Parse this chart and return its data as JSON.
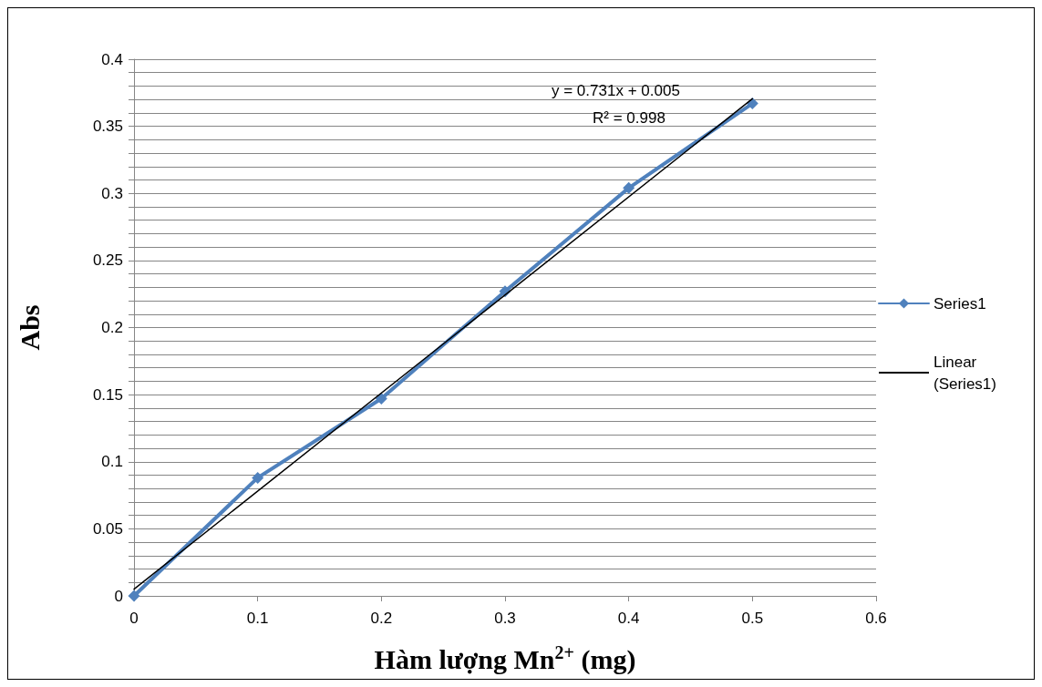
{
  "chart_data": {
    "type": "line",
    "xlabel": "Hàm lượng Mn$^{2+}$ (mg)",
    "ylabel": "Abs",
    "x": [
      0,
      0.1,
      0.2,
      0.3,
      0.4,
      0.5
    ],
    "series": [
      {
        "name": "Series1",
        "color": "#4f81bd",
        "marker": "diamond",
        "values": [
          0,
          0.088,
          0.147,
          0.227,
          0.304,
          0.367
        ]
      },
      {
        "name": "Linear (Series1)",
        "type": "line",
        "color": "#000000",
        "marker": "none",
        "x": [
          0,
          0.5
        ],
        "values": [
          0.005,
          0.3705
        ]
      }
    ],
    "xlim": [
      0,
      0.6
    ],
    "xticks": [
      0,
      0.1,
      0.2,
      0.3,
      0.4,
      0.5,
      0.6
    ],
    "ylim": [
      0,
      0.4
    ],
    "yticks": [
      0,
      {
        "value": 0.01,
        "label": null
      },
      {
        "value": 0.02,
        "label": null
      },
      {
        "value": 0.03,
        "label": null
      },
      {
        "value": 0.04,
        "label": null
      },
      0.05,
      {
        "value": 0.06,
        "label": null
      },
      {
        "value": 0.07,
        "label": null
      },
      {
        "value": 0.08,
        "label": null
      },
      {
        "value": 0.09,
        "label": null
      },
      0.1,
      {
        "value": 0.11,
        "label": null
      },
      {
        "value": 0.12,
        "label": null
      },
      {
        "value": 0.13,
        "label": null
      },
      {
        "value": 0.14,
        "label": null
      },
      0.15,
      {
        "value": 0.16,
        "label": null
      },
      {
        "value": 0.17,
        "label": null
      },
      {
        "value": 0.18,
        "label": null
      },
      {
        "value": 0.19,
        "label": null
      },
      0.2,
      {
        "value": 0.21,
        "label": null
      },
      {
        "value": 0.22,
        "label": null
      },
      {
        "value": 0.23,
        "label": null
      },
      {
        "value": 0.24,
        "label": null
      },
      0.25,
      {
        "value": 0.26,
        "label": null
      },
      {
        "value": 0.27,
        "label": null
      },
      {
        "value": 0.28,
        "label": null
      },
      {
        "value": 0.29,
        "label": null
      },
      0.3,
      {
        "value": 0.31,
        "label": null
      },
      {
        "value": 0.32,
        "label": null
      },
      {
        "value": 0.33,
        "label": null
      },
      {
        "value": 0.34,
        "label": null
      },
      0.35,
      {
        "value": 0.36,
        "label": null
      },
      {
        "value": 0.37,
        "label": null
      },
      {
        "value": 0.38,
        "label": null
      },
      {
        "value": 0.39,
        "label": null
      },
      0.4
    ],
    "grid": "y",
    "legend": "right",
    "line_style": "solid",
    "annotations": [
      "y = 0.731x + 0.005",
      "R² = 0.998"
    ]
  }
}
